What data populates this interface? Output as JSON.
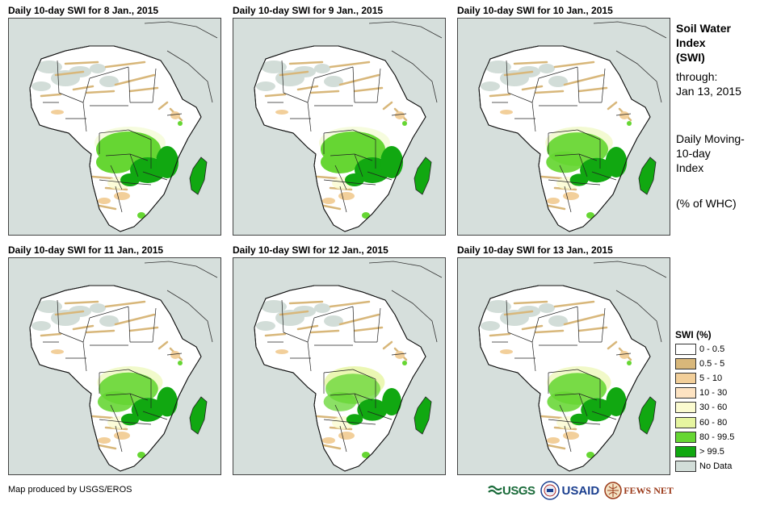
{
  "panels": [
    {
      "title": "Daily 10-day SWI for 8 Jan., 2015",
      "wet_extent": 1.0,
      "lightening": 0
    },
    {
      "title": "Daily 10-day SWI for 9 Jan., 2015",
      "wet_extent": 1.0,
      "lightening": 0
    },
    {
      "title": "Daily 10-day SWI for 10 Jan., 2015",
      "wet_extent": 0.95,
      "lightening": 0.2
    },
    {
      "title": "Daily 10-day SWI for 11 Jan., 2015",
      "wet_extent": 0.92,
      "lightening": 0.3
    },
    {
      "title": "Daily 10-day SWI for 12 Jan., 2015",
      "wet_extent": 0.85,
      "lightening": 0.7
    },
    {
      "title": "Daily 10-day SWI for 13 Jan., 2015",
      "wet_extent": 0.9,
      "lightening": 0.35
    }
  ],
  "side": {
    "title_lines": [
      "Soil Water",
      "Index",
      "(SWI)"
    ],
    "through_label": "through:",
    "through_date": "Jan 13, 2015",
    "method_lines": [
      "Daily Moving-",
      "10-day",
      "Index"
    ],
    "units": "(% of WHC)"
  },
  "legend": {
    "title": "SWI (%)",
    "items": [
      {
        "label": "0 - 0.5",
        "color": "#ffffff"
      },
      {
        "label": "0.5 - 5",
        "color": "#d8b77a"
      },
      {
        "label": "5 - 10",
        "color": "#f2cf9a"
      },
      {
        "label": "10 - 30",
        "color": "#fde3c2"
      },
      {
        "label": "30 - 60",
        "color": "#fbfbd0"
      },
      {
        "label": "60 - 80",
        "color": "#e6f5a0"
      },
      {
        "label": "80 - 99.5",
        "color": "#66d633"
      },
      {
        "label": "> 99.5",
        "color": "#11a811"
      },
      {
        "label": "No Data",
        "color": "#d2ddd8"
      }
    ]
  },
  "credit": "Map produced by USGS/EROS",
  "logos": {
    "usgs": "USGS",
    "usaid": "USAID",
    "fews": "FEWS NET"
  }
}
